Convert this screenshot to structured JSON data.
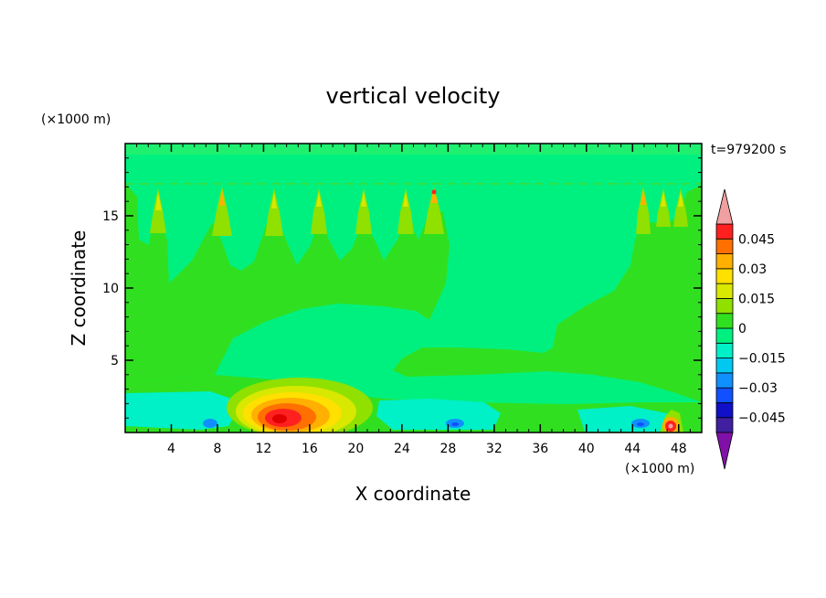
{
  "chart_data": {
    "type": "heatmap",
    "title": "vertical velocity",
    "xlabel": "X coordinate",
    "ylabel": "Z coordinate",
    "x_unit": "(×1000 m)",
    "y_unit": "(×1000 m)",
    "time_label": "t=979200 s",
    "xlim": [
      0,
      50
    ],
    "ylim": [
      0,
      20
    ],
    "x_ticks": [
      4,
      8,
      12,
      16,
      20,
      24,
      28,
      32,
      36,
      40,
      44,
      48
    ],
    "y_ticks": [
      5,
      10,
      15
    ],
    "colorbar": {
      "labels": [
        "0.045",
        "0.03",
        "0.015",
        "0",
        "−0.015",
        "−0.03",
        "−0.045"
      ],
      "levels": [
        -0.0525,
        -0.045,
        -0.0375,
        -0.03,
        -0.0225,
        -0.015,
        -0.0075,
        0,
        0.0075,
        0.015,
        0.0225,
        0.03,
        0.0375,
        0.045,
        0.0525
      ],
      "colors": [
        "#8010a8",
        "#4020a0",
        "#1010c8",
        "#1050ff",
        "#1090ff",
        "#00c8f0",
        "#00f0c8",
        "#00f080",
        "#30e020",
        "#90e000",
        "#d8e800",
        "#ffe000",
        "#ffb000",
        "#ff7000",
        "#ff2020",
        "#f0a0a0"
      ],
      "extend": "both"
    },
    "features": {
      "background_level": 0.002,
      "updraft_plumes_x": [
        3.2,
        8.5,
        13,
        17,
        21,
        24.8,
        27,
        45,
        47,
        48.5
      ],
      "updraft_plume_top_z": 17,
      "surface_updraft": {
        "x": 13,
        "z": 1,
        "peak": 0.04
      },
      "surface_downdrafts_x": [
        7.5,
        29,
        44.7
      ]
    }
  }
}
